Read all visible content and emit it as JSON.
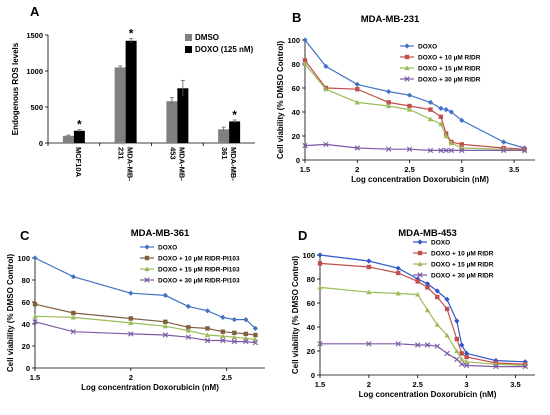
{
  "chart_data": [
    {
      "panel": "A",
      "type": "bar",
      "title": "",
      "ylabel": "Endogenous ROS levels",
      "xlabel": "",
      "ylim": [
        0,
        1500
      ],
      "yticks": [
        0,
        500,
        1000,
        1500
      ],
      "categories": [
        "MCF10A",
        "MDA-MB-231",
        "MDA-MB-453",
        "MDA-MB-361"
      ],
      "series": [
        {
          "name": "DMSO",
          "color": "#808080",
          "values": [
            100,
            1050,
            580,
            190
          ],
          "errors": [
            10,
            20,
            50,
            30
          ]
        },
        {
          "name": "DOXO (125 nM)",
          "color": "#000000",
          "values": [
            170,
            1420,
            760,
            300
          ],
          "errors": [
            15,
            30,
            110,
            20
          ]
        }
      ],
      "annotations": [
        "*",
        "*",
        "*"
      ],
      "legend": "top-right",
      "grid": false
    },
    {
      "panel": "B",
      "type": "line",
      "title": "MDA-MB-231",
      "xlabel": "Log concentration Doxorubicin (nM)",
      "ylabel": "Cell viability (% DMSO Control)",
      "xlim": [
        1.5,
        3.7
      ],
      "ylim": [
        0,
        100
      ],
      "xticks": [
        1.5,
        2,
        2.5,
        3,
        3.5
      ],
      "yticks": [
        0,
        20,
        40,
        60,
        80,
        100
      ],
      "legend": "top-right",
      "grid": false,
      "series": [
        {
          "name": "DOXO",
          "color": "#4472C4",
          "marker": "diamond",
          "x": [
            1.5,
            1.7,
            2.0,
            2.3,
            2.5,
            2.7,
            2.8,
            2.85,
            2.9,
            3.0,
            3.4,
            3.6
          ],
          "y": [
            100,
            78,
            63,
            57,
            54,
            48,
            43,
            42,
            40,
            33,
            15,
            10
          ]
        },
        {
          "name": "DOXO + 10 µM RIDR",
          "color": "#C0504D",
          "marker": "square",
          "x": [
            1.5,
            1.7,
            2.0,
            2.3,
            2.5,
            2.7,
            2.8,
            2.85,
            2.9,
            3.0,
            3.4,
            3.6
          ],
          "y": [
            83,
            60,
            59,
            48,
            45,
            42,
            36,
            22,
            15,
            13,
            10,
            9
          ]
        },
        {
          "name": "DOXO + 15 µM RIDR",
          "color": "#9BBB59",
          "marker": "triangle",
          "x": [
            1.5,
            1.7,
            2.0,
            2.3,
            2.5,
            2.7,
            2.8,
            2.85,
            2.9,
            3.0,
            3.4,
            3.6
          ],
          "y": [
            80,
            59,
            48,
            45,
            42,
            34,
            30,
            20,
            14,
            10,
            9,
            8
          ]
        },
        {
          "name": "DOXO + 30 µM RIDR",
          "color": "#7E5BA6",
          "marker": "x",
          "x": [
            1.5,
            1.7,
            2.0,
            2.3,
            2.5,
            2.7,
            2.8,
            2.85,
            2.9,
            3.0,
            3.4,
            3.6
          ],
          "y": [
            12,
            13,
            10,
            9,
            9,
            8,
            8,
            8,
            8,
            8,
            8,
            8
          ]
        }
      ]
    },
    {
      "panel": "C",
      "type": "line",
      "title": "MDA-MB-361",
      "xlabel": "Log concentration Doxorubicin (nM)",
      "ylabel": "Cell viability (% DMSO Control)",
      "xlim": [
        1.5,
        2.7
      ],
      "ylim": [
        0,
        100
      ],
      "xticks": [
        1.5,
        2,
        2.5
      ],
      "yticks": [
        0,
        20,
        40,
        60,
        80,
        100
      ],
      "legend": "top-right",
      "grid": false,
      "series": [
        {
          "name": "DOXO",
          "color": "#4472C4",
          "marker": "diamond",
          "x": [
            1.5,
            1.7,
            2.0,
            2.18,
            2.3,
            2.4,
            2.48,
            2.54,
            2.6,
            2.65
          ],
          "y": [
            100,
            83,
            68,
            66,
            56,
            52,
            46,
            44,
            44,
            36
          ]
        },
        {
          "name": "DOXO + 10 µM RIDR-PI103",
          "color": "#7F5F3F",
          "marker": "square",
          "x": [
            1.5,
            1.7,
            2.0,
            2.18,
            2.3,
            2.4,
            2.48,
            2.54,
            2.6,
            2.65
          ],
          "y": [
            58,
            50,
            45,
            42,
            37,
            36,
            33,
            32,
            31,
            30
          ]
        },
        {
          "name": "DOXO + 15 µM RIDR-PI103",
          "color": "#9BBB59",
          "marker": "triangle",
          "x": [
            1.5,
            1.7,
            2.0,
            2.18,
            2.3,
            2.4,
            2.48,
            2.54,
            2.6,
            2.65
          ],
          "y": [
            47,
            46,
            41,
            38,
            34,
            30,
            29,
            28,
            27,
            26
          ]
        },
        {
          "name": "DOXO + 30 µM RIDR-PI103",
          "color": "#7E5BA6",
          "marker": "x",
          "x": [
            1.5,
            1.7,
            2.0,
            2.18,
            2.3,
            2.4,
            2.48,
            2.54,
            2.6,
            2.65
          ],
          "y": [
            42,
            33,
            31,
            30,
            28,
            25,
            25,
            24,
            24,
            23
          ]
        }
      ]
    },
    {
      "panel": "D",
      "type": "line",
      "title": "MDA-MB-453",
      "xlabel": "Log concentration Doxorubicin (nM)",
      "ylabel": "Cell viability (% DMSO Control)",
      "xlim": [
        1.5,
        3.7
      ],
      "ylim": [
        0,
        100
      ],
      "xticks": [
        1.5,
        2,
        2.5,
        3,
        3.5
      ],
      "yticks": [
        0,
        20,
        40,
        60,
        80,
        100
      ],
      "legend": "top-right",
      "grid": false,
      "series": [
        {
          "name": "DOXO",
          "color": "#2F55C8",
          "marker": "diamond",
          "x": [
            1.5,
            2.0,
            2.3,
            2.5,
            2.6,
            2.7,
            2.8,
            2.9,
            2.95,
            3.0,
            3.3,
            3.6
          ],
          "y": [
            100,
            95,
            89,
            80,
            76,
            70,
            63,
            45,
            25,
            18,
            12,
            11
          ]
        },
        {
          "name": "DOXO + 10 µM RIDR",
          "color": "#C0504D",
          "marker": "square",
          "x": [
            1.5,
            2.0,
            2.3,
            2.5,
            2.6,
            2.7,
            2.8,
            2.9,
            2.95,
            3.0,
            3.3,
            3.6
          ],
          "y": [
            93,
            90,
            85,
            78,
            73,
            65,
            55,
            30,
            18,
            15,
            10,
            9
          ]
        },
        {
          "name": "DOXO + 15 µM RIDR",
          "color": "#9BBB59",
          "marker": "triangle",
          "x": [
            1.5,
            2.0,
            2.3,
            2.5,
            2.6,
            2.7,
            2.8,
            2.9,
            2.95,
            3.0,
            3.3,
            3.6
          ],
          "y": [
            73,
            69,
            68,
            67,
            54,
            42,
            33,
            20,
            13,
            11,
            9,
            8
          ]
        },
        {
          "name": "DOXO + 30 µM RIDR",
          "color": "#7E5BA6",
          "marker": "x",
          "x": [
            1.5,
            2.0,
            2.3,
            2.5,
            2.6,
            2.7,
            2.8,
            2.9,
            2.95,
            3.0,
            3.3,
            3.6
          ],
          "y": [
            26,
            26,
            26,
            25,
            25,
            24,
            18,
            13,
            9,
            8,
            7,
            7
          ]
        }
      ]
    }
  ]
}
